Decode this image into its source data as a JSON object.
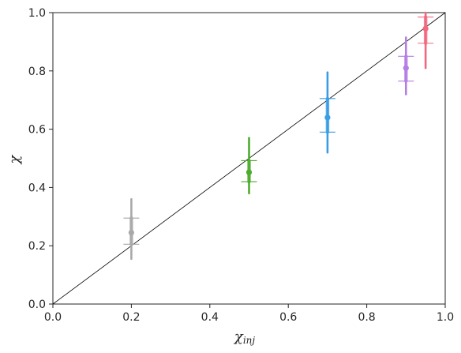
{
  "chart_data": {
    "type": "scatter",
    "xlabel": "χ",
    "xlabel_sub": "inj",
    "ylabel": "χ",
    "xlim": [
      0.0,
      1.0
    ],
    "ylim": [
      0.0,
      1.0
    ],
    "xticks": [
      "0.0",
      "0.2",
      "0.4",
      "0.6",
      "0.8",
      "1.0"
    ],
    "yticks": [
      "0.0",
      "0.2",
      "0.4",
      "0.6",
      "0.8",
      "1.0"
    ],
    "reference_line": {
      "from": [
        0.0,
        0.0
      ],
      "to": [
        1.0,
        1.0
      ],
      "color": "#000000"
    },
    "grid": false,
    "legend": "none",
    "series": [
      {
        "x": 0.2,
        "median": 0.245,
        "q_low": 0.205,
        "q_high": 0.295,
        "ci_low": 0.155,
        "ci_high": 0.36,
        "color": "#a9a9a9"
      },
      {
        "x": 0.5,
        "median": 0.452,
        "q_low": 0.42,
        "q_high": 0.492,
        "ci_low": 0.38,
        "ci_high": 0.57,
        "color": "#4dab2d"
      },
      {
        "x": 0.7,
        "median": 0.64,
        "q_low": 0.59,
        "q_high": 0.705,
        "ci_low": 0.52,
        "ci_high": 0.795,
        "color": "#3a9ee4"
      },
      {
        "x": 0.9,
        "median": 0.81,
        "q_low": 0.765,
        "q_high": 0.85,
        "ci_low": 0.72,
        "ci_high": 0.915,
        "color": "#b57ee6"
      },
      {
        "x": 0.95,
        "median": 0.945,
        "q_low": 0.895,
        "q_high": 0.985,
        "ci_low": 0.81,
        "ci_high": 1.0,
        "color": "#f2687e"
      }
    ]
  }
}
